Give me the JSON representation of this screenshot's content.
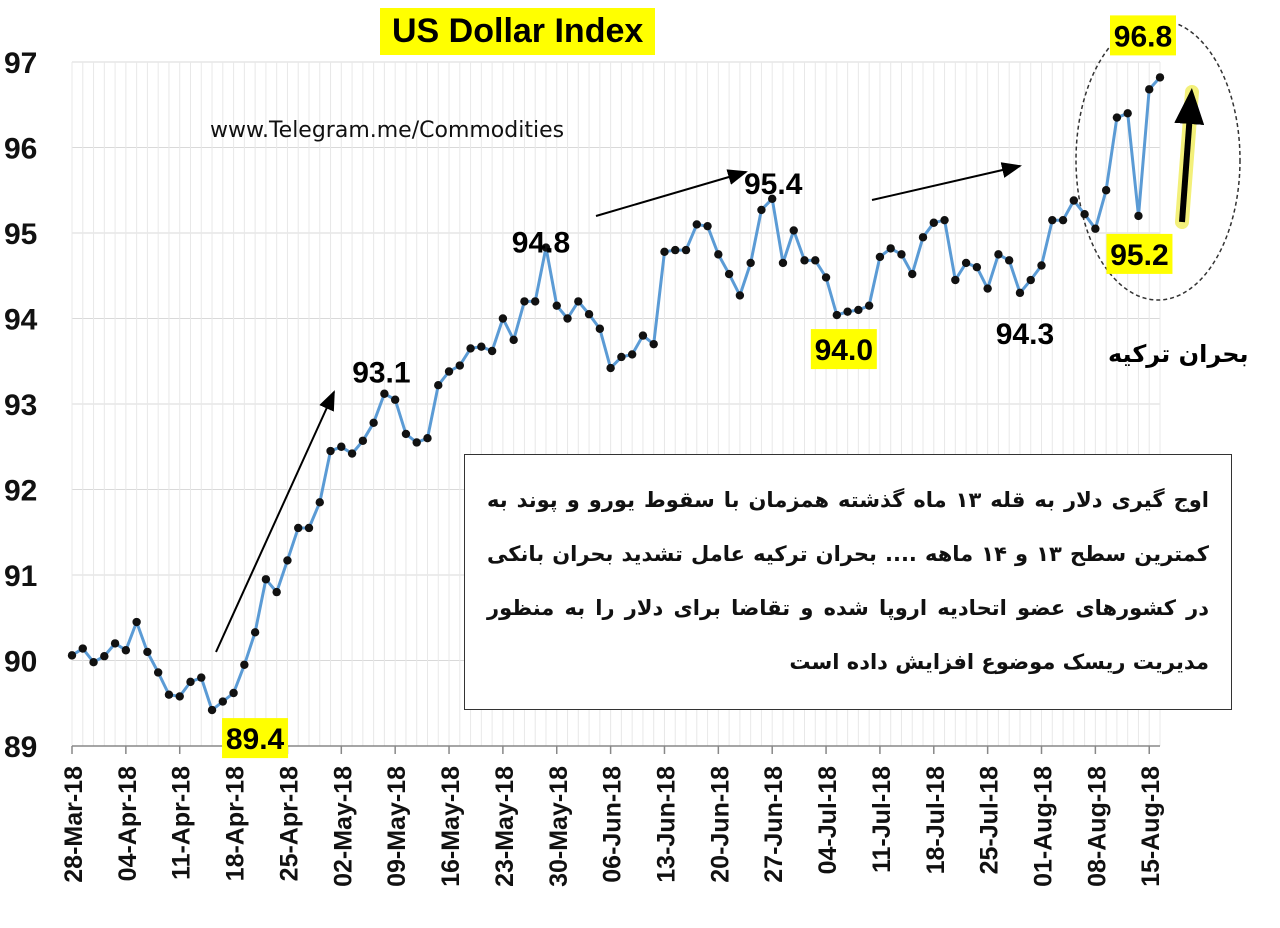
{
  "chart_data": {
    "type": "line",
    "title": "US Dollar Index",
    "source": "www.Telegram.me/Commodities",
    "ylim": [
      89,
      97
    ],
    "yticks": [
      "89",
      "90",
      "91",
      "92",
      "93",
      "94",
      "95",
      "96",
      "97"
    ],
    "xticks": [
      "28-Mar-18",
      "04-Apr-18",
      "11-Apr-18",
      "18-Apr-18",
      "25-Apr-18",
      "02-May-18",
      "09-May-18",
      "16-May-18",
      "23-May-18",
      "30-May-18",
      "06-Jun-18",
      "13-Jun-18",
      "20-Jun-18",
      "27-Jun-18",
      "04-Jul-18",
      "11-Jul-18",
      "18-Jul-18",
      "25-Jul-18",
      "01-Aug-18",
      "08-Aug-18",
      "15-Aug-18"
    ],
    "grid": true,
    "series": [
      {
        "values": [
          90.06,
          90.14,
          89.98,
          90.05,
          90.2,
          90.12,
          90.45,
          90.1,
          89.86,
          89.6,
          89.58,
          89.75,
          89.8,
          89.42,
          89.52,
          89.62,
          89.95,
          90.33,
          90.95,
          90.8,
          91.17,
          91.55,
          91.55,
          91.85,
          92.45,
          92.5,
          92.42,
          92.57,
          92.78,
          93.12,
          93.05,
          92.65,
          92.55,
          92.6,
          93.22,
          93.38,
          93.45,
          93.65,
          93.67,
          93.62,
          94.0,
          93.75,
          94.2,
          94.2,
          94.83,
          94.15,
          94.0,
          94.2,
          94.05,
          93.88,
          93.42,
          93.55,
          93.58,
          93.8,
          93.7,
          94.78,
          94.8,
          94.8,
          95.1,
          95.08,
          94.75,
          94.52,
          94.27,
          94.65,
          95.27,
          95.4,
          94.65,
          95.03,
          94.68,
          94.68,
          94.48,
          94.04,
          94.08,
          94.1,
          94.15,
          94.72,
          94.82,
          94.75,
          94.52,
          94.95,
          95.12,
          95.15,
          94.45,
          94.65,
          94.6,
          94.35,
          94.75,
          94.68,
          94.3,
          94.45,
          94.62,
          95.15,
          95.15,
          95.38,
          95.22,
          95.05,
          95.5,
          96.35,
          96.4,
          95.2,
          96.68,
          96.82
        ]
      }
    ],
    "annotations": [
      "89.4",
      "93.1",
      "94.8",
      "95.4",
      "94.0",
      "94.3",
      "95.2",
      "96.8"
    ],
    "highlight_color": "#ffff00",
    "line_color": "#5b9bd5"
  },
  "crisis_label": "بحران ترکیه",
  "note": "اوج گیری دلار به قله ۱۳ ماه گذشته همزمان با سقوط یورو و پوند به کمترین سطح ۱۳ و ۱۴ ماهه .... بحران ترکیه عامل تشدید بحران بانکی در کشورهای عضو اتحادیه اروپا شده و تقاضا برای دلار را به منظور مدیریت ریسک موضوع افزایش داده است"
}
